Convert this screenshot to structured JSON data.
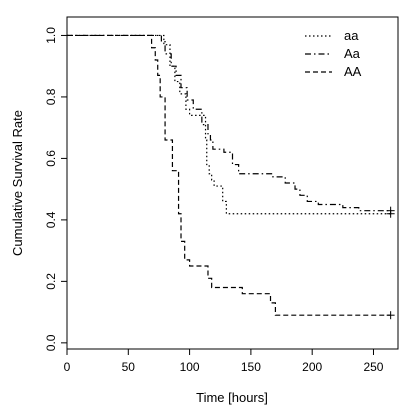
{
  "chart_data": {
    "type": "line",
    "title": "",
    "xlabel": "Time [hours]",
    "ylabel": "Cumulative Survival Rate",
    "xlim": [
      0,
      270
    ],
    "ylim": [
      -0.02,
      1.06
    ],
    "xticks": [
      0,
      50,
      100,
      150,
      200,
      250
    ],
    "yticks": [
      0.0,
      0.2,
      0.4,
      0.6,
      0.8,
      1.0
    ],
    "xtick_labels": [
      "0",
      "50",
      "100",
      "150",
      "200",
      "250"
    ],
    "ytick_labels": [
      "0.0",
      "0.2",
      "0.4",
      "0.6",
      "0.8",
      "1.0"
    ],
    "grid": false,
    "legend_position": "top-right",
    "step": true,
    "series": [
      {
        "name": "aa",
        "style": "dotted",
        "censored_end": true,
        "x": [
          0,
          79,
          84,
          88,
          92,
          97,
          100,
          108,
          113,
          114,
          116,
          118,
          120,
          127,
          130,
          264
        ],
        "y": [
          1.0,
          0.97,
          0.9,
          0.85,
          0.81,
          0.76,
          0.74,
          0.74,
          0.66,
          0.58,
          0.55,
          0.53,
          0.51,
          0.46,
          0.42,
          0.42
        ]
      },
      {
        "name": "Aa",
        "style": "dashdot",
        "censored_end": true,
        "x": [
          0,
          77,
          80,
          85,
          89,
          93,
          98,
          103,
          110,
          115,
          117,
          119,
          122,
          128,
          135,
          140,
          155,
          168,
          178,
          186,
          190,
          196,
          205,
          216,
          225,
          238,
          264
        ],
        "y": [
          1.0,
          0.98,
          0.94,
          0.9,
          0.87,
          0.83,
          0.79,
          0.76,
          0.71,
          0.68,
          0.66,
          0.63,
          0.63,
          0.62,
          0.58,
          0.55,
          0.55,
          0.54,
          0.52,
          0.5,
          0.48,
          0.46,
          0.45,
          0.45,
          0.44,
          0.43,
          0.43
        ]
      },
      {
        "name": "AA",
        "style": "dashed",
        "censored_end": true,
        "x": [
          0,
          69,
          72,
          74,
          76,
          80,
          86,
          91,
          93,
          96,
          100,
          115,
          118,
          123,
          143,
          160,
          166,
          170,
          264
        ],
        "y": [
          1.0,
          0.96,
          0.92,
          0.87,
          0.8,
          0.66,
          0.56,
          0.42,
          0.33,
          0.27,
          0.25,
          0.21,
          0.18,
          0.18,
          0.16,
          0.16,
          0.13,
          0.09,
          0.09
        ]
      }
    ]
  }
}
